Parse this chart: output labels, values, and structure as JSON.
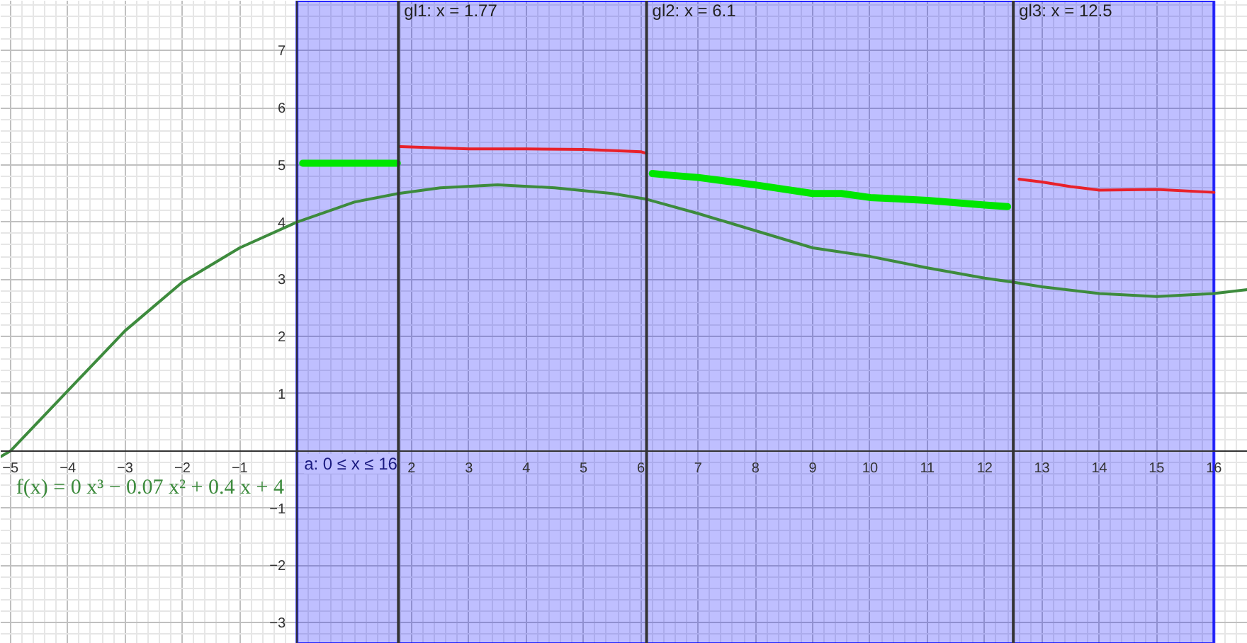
{
  "chart_data": {
    "type": "line",
    "xlim": [
      -5.17,
      16.59
    ],
    "ylim": [
      -3.37,
      7.87
    ],
    "xticks": [
      -5,
      -4,
      -3,
      -2,
      -1,
      {
        "value": 0,
        "label": null
      },
      2,
      3,
      4,
      5,
      6,
      7,
      8,
      9,
      10,
      11,
      12,
      13,
      14,
      15,
      16
    ],
    "yticks": [
      -3,
      -2,
      -1,
      {
        "value": 0,
        "label": null
      },
      1,
      2,
      3,
      4,
      5,
      6,
      7
    ],
    "grid": true,
    "marker": "none",
    "line_style": "solid",
    "series": [
      {
        "name": "f(x) = 0 x³ − 0.07 x² + 0.4 x + 4",
        "color": "#3d8b3d",
        "x": [
          -5.17,
          -5,
          -4,
          -3,
          -2,
          -1,
          0,
          1,
          1.77,
          2.5,
          3.5,
          4.5,
          5.5,
          6.1,
          7,
          8,
          9,
          10,
          11,
          12,
          12.5,
          13,
          14,
          15,
          16,
          16.59
        ],
        "values": [
          -0.1,
          0,
          1.05,
          2.1,
          2.95,
          3.55,
          4.0,
          4.35,
          4.5,
          4.6,
          4.65,
          4.6,
          4.5,
          4.4,
          4.15,
          3.85,
          3.55,
          3.4,
          3.2,
          3.02,
          2.95,
          2.87,
          2.75,
          2.7,
          2.75,
          2.82
        ]
      },
      {
        "color": "#00e600",
        "x": [
          0.1,
          1.75,
          null,
          6.2,
          6.5,
          7,
          8,
          9,
          9.5,
          10,
          11,
          12,
          12.4
        ],
        "values": [
          5.03,
          5.03,
          null,
          4.85,
          4.82,
          4.78,
          4.65,
          4.5,
          4.5,
          4.43,
          4.38,
          4.3,
          4.27
        ]
      },
      {
        "color": "#e8212b",
        "x": [
          1.8,
          3,
          4,
          5,
          6,
          6.1,
          null,
          12.6,
          13,
          13.5,
          14,
          15,
          16
        ],
        "values": [
          5.32,
          5.28,
          5.28,
          5.27,
          5.23,
          5.2,
          null,
          4.75,
          4.7,
          4.62,
          4.56,
          4.57,
          4.52
        ]
      }
    ],
    "ref_lines": [
      {
        "axis": "x",
        "value": 1.77,
        "label": "gl1: x = 1.77",
        "color": "#333333"
      },
      {
        "axis": "x",
        "value": 6.1,
        "label": "gl2: x = 6.1",
        "color": "#333333"
      },
      {
        "axis": "x",
        "value": 12.5,
        "label": "gl3: x = 12.5",
        "color": "#333333"
      }
    ],
    "bands": [
      {
        "axis": "x",
        "from": 0,
        "to": 16,
        "label": "a: 0 ≤ x ≤ 16",
        "color": "#0000ff"
      }
    ]
  }
}
